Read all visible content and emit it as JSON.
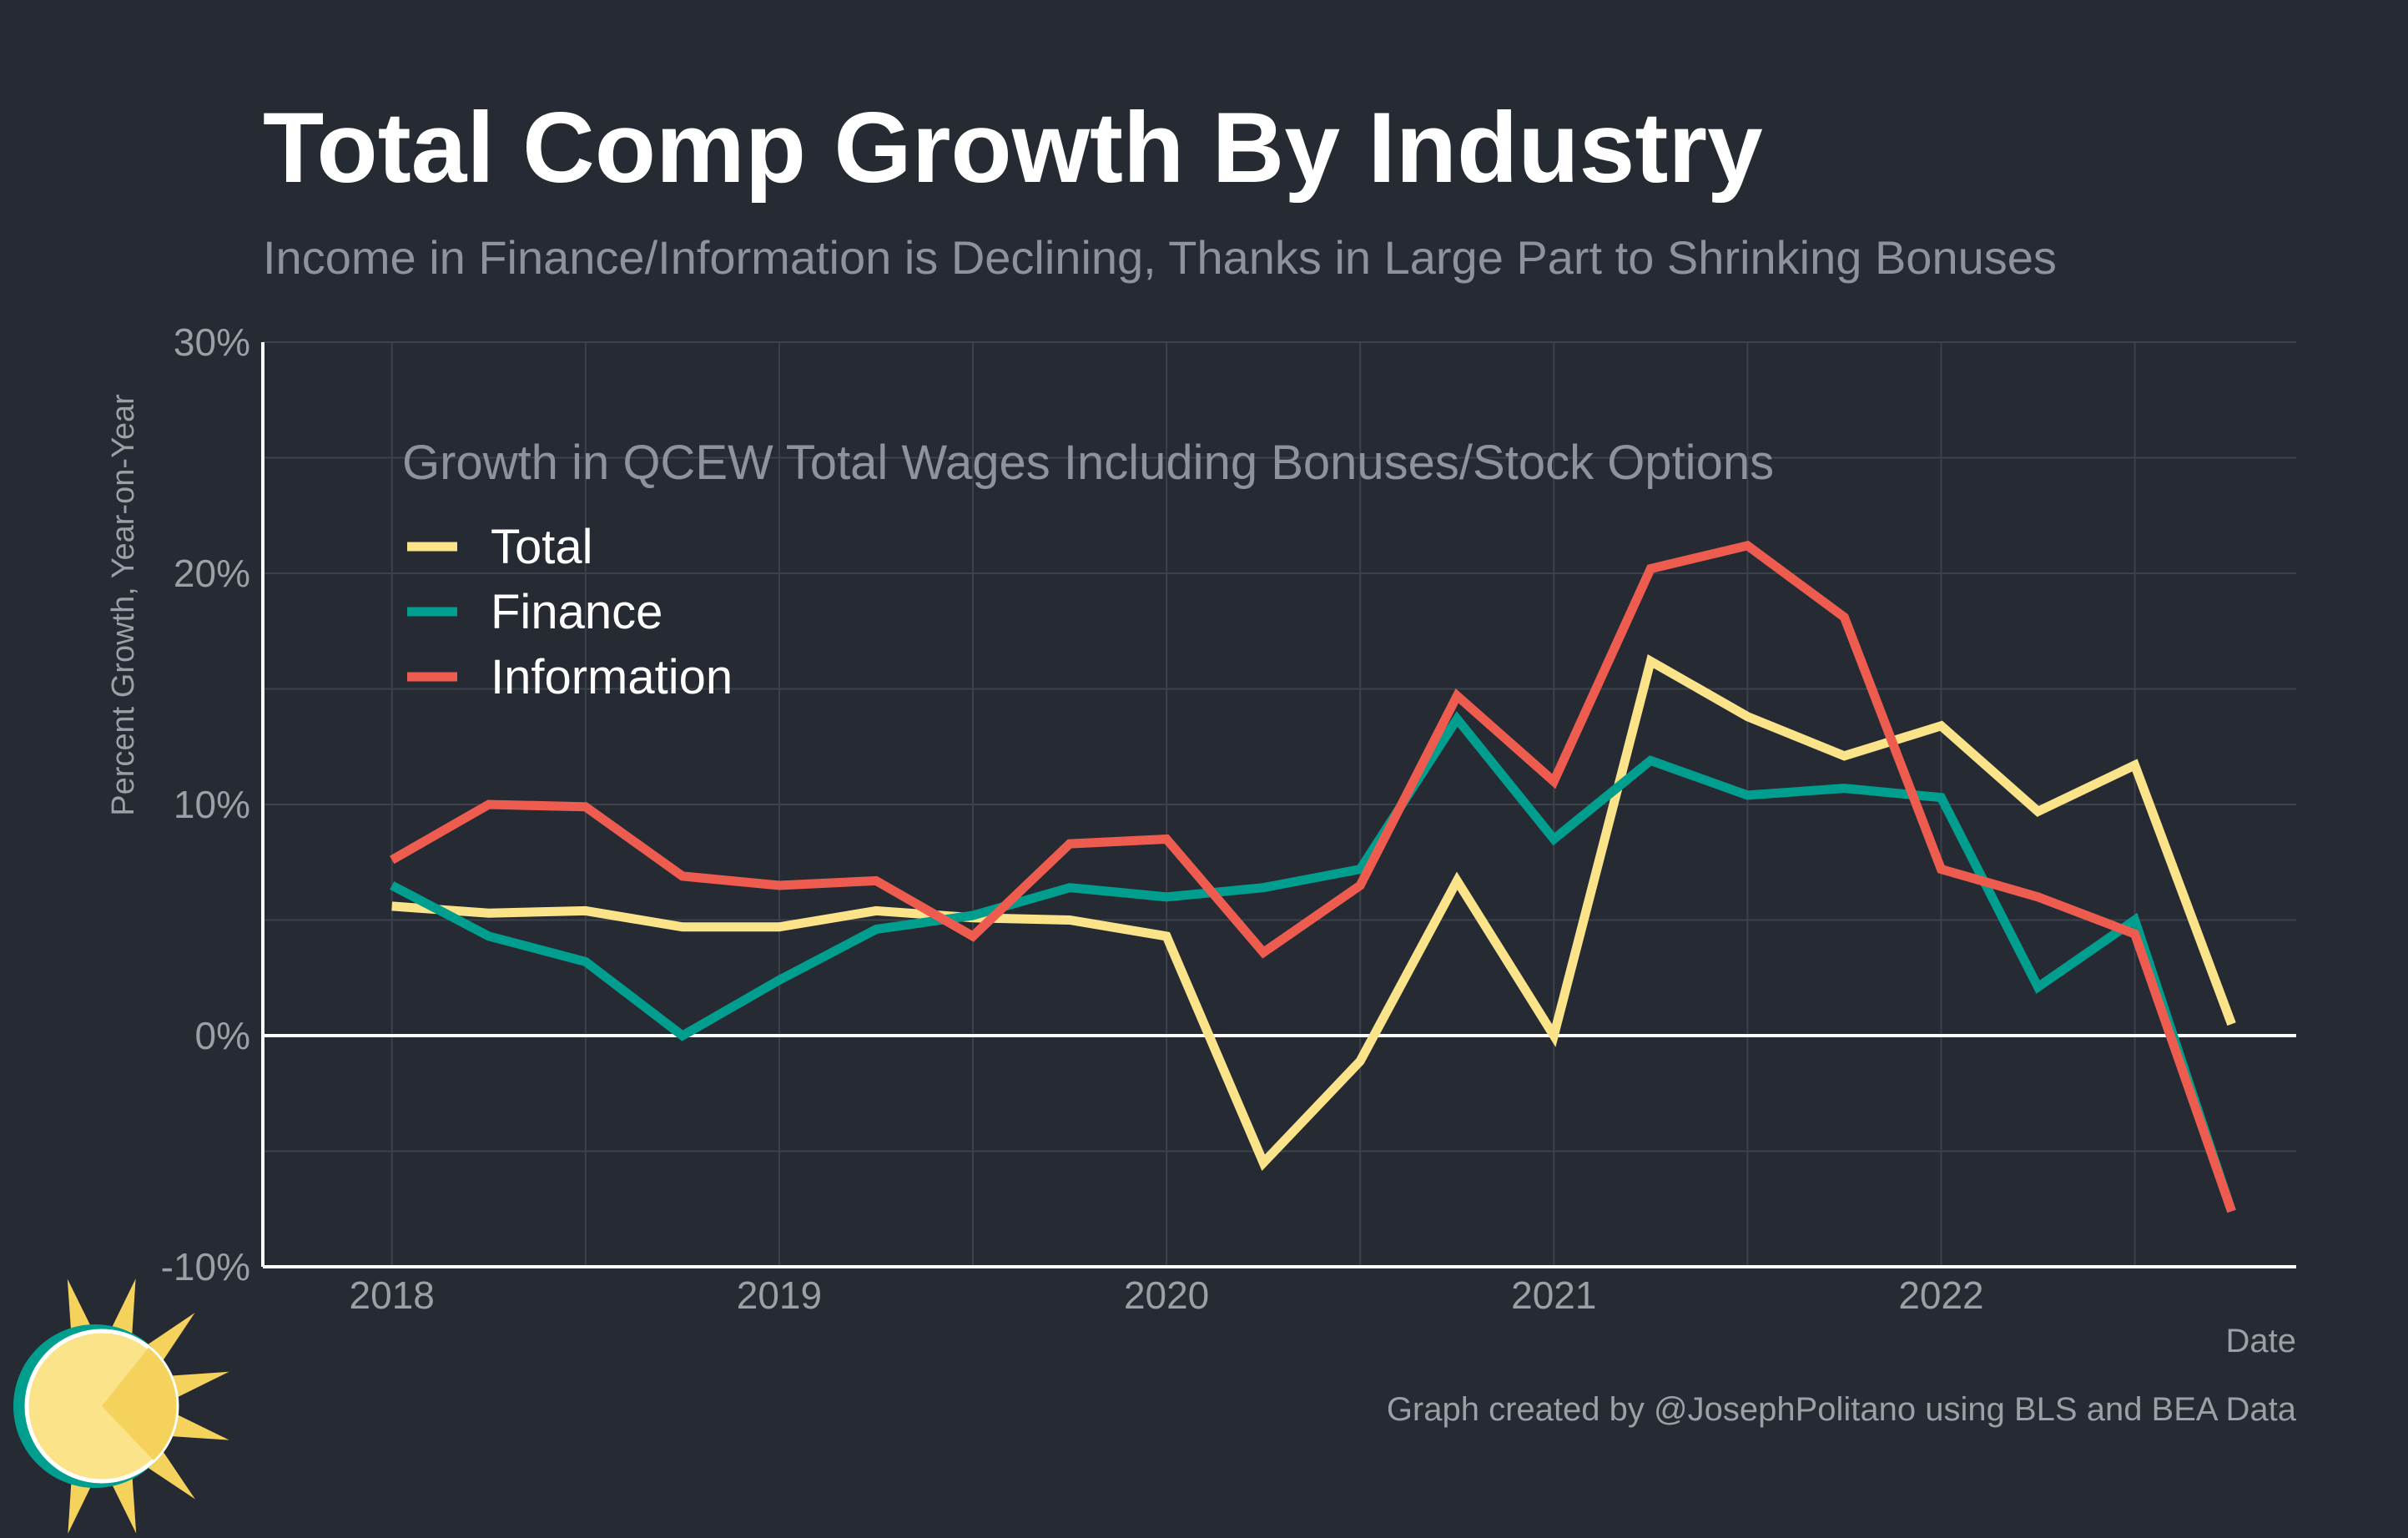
{
  "colors": {
    "background": "#252a33",
    "grid": "#3c414b",
    "axis": "#ffffff",
    "total": "#fbe38a",
    "finance": "#009e8e",
    "information": "#ee5c4f"
  },
  "logo": {
    "name": "sun-logo-icon"
  },
  "chart_data": {
    "type": "line",
    "title": "Total Comp Growth By Industry",
    "subtitle": "Income in Finance/Information is Declining, Thanks in Large Part to Shrinking Bonuses",
    "xlabel": "Date",
    "ylabel": "Percent Growth, Year-on-Year",
    "legend_title": "Growth in QCEW Total Wages Including Bonuses/Stock Options",
    "legend_position": "top-left",
    "grid": true,
    "ylim": [
      -10,
      30
    ],
    "yticks": [
      -10,
      0,
      10,
      20,
      30
    ],
    "ytick_labels": [
      "-10%",
      "0%",
      "10%",
      "20%",
      "30%"
    ],
    "xlim": [
      "2017-09",
      "2022-12"
    ],
    "xticks": [
      "2018-01",
      "2019-01",
      "2020-01",
      "2021-01",
      "2022-01"
    ],
    "xtick_labels": [
      "2018",
      "2019",
      "2020",
      "2021",
      "2022"
    ],
    "x": [
      "2018-01",
      "2018-04",
      "2018-07",
      "2018-10",
      "2019-01",
      "2019-04",
      "2019-07",
      "2019-10",
      "2020-01",
      "2020-04",
      "2020-07",
      "2020-10",
      "2021-01",
      "2021-04",
      "2021-07",
      "2021-10",
      "2022-01",
      "2022-04",
      "2022-07",
      "2022-10"
    ],
    "series": [
      {
        "name": "Total",
        "color": "#fbe38a",
        "values": [
          5.6,
          5.3,
          5.4,
          4.7,
          4.7,
          5.4,
          5.1,
          5.0,
          4.3,
          -5.5,
          -1.1,
          6.7,
          0.0,
          16.2,
          13.8,
          12.1,
          13.4,
          9.7,
          11.7,
          0.5
        ]
      },
      {
        "name": "Finance",
        "color": "#009e8e",
        "values": [
          6.5,
          4.3,
          3.2,
          0.0,
          2.4,
          4.6,
          5.2,
          6.4,
          6.0,
          6.4,
          7.2,
          13.7,
          8.5,
          11.9,
          10.4,
          10.7,
          10.3,
          2.1,
          5.0,
          -7.6
        ]
      },
      {
        "name": "Information",
        "color": "#ee5c4f",
        "values": [
          7.6,
          10.0,
          9.9,
          6.9,
          6.5,
          6.7,
          4.3,
          8.3,
          8.5,
          3.6,
          6.5,
          14.7,
          11.0,
          20.2,
          21.2,
          18.1,
          7.2,
          6.0,
          4.4,
          -7.6
        ]
      }
    ]
  },
  "credit": "Graph created by @JosephPolitano using BLS and BEA Data"
}
